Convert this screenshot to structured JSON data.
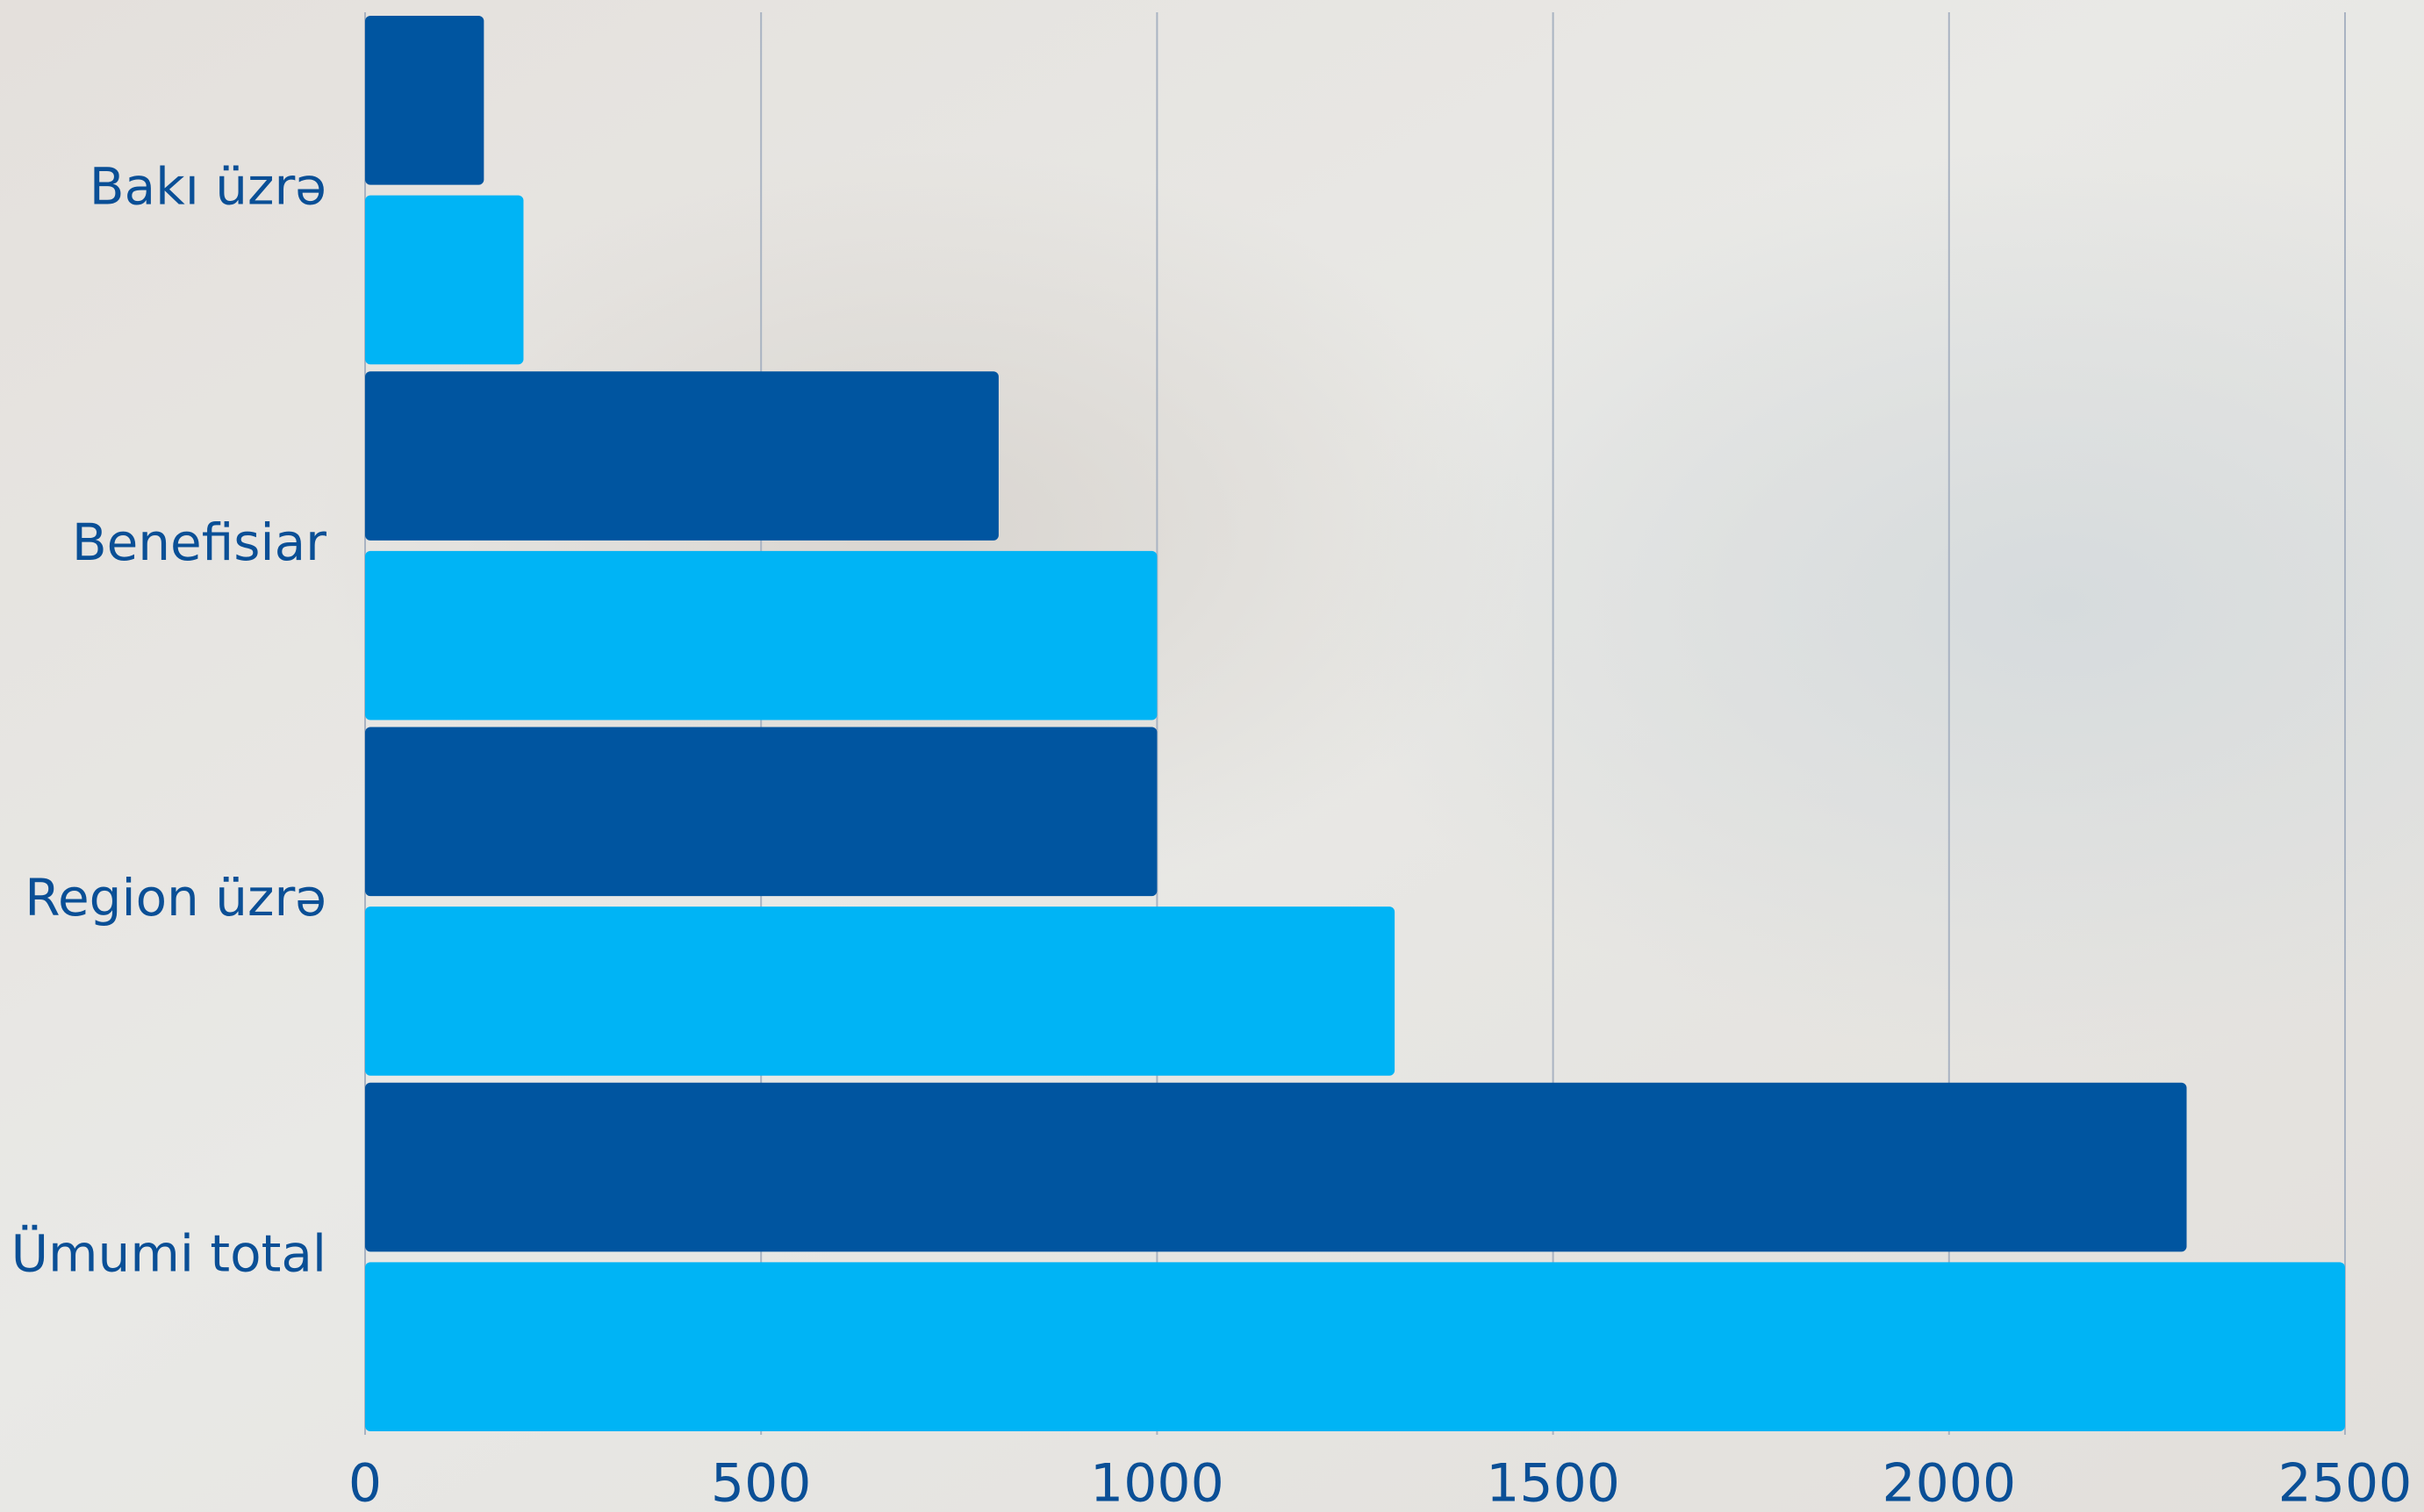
{
  "chart_data": {
    "type": "hbar",
    "categories": [
      "Bakı üzrə",
      "Benefisiar",
      "Region üzrə",
      "Ümumi total"
    ],
    "series": [
      {
        "color": "#0055a0",
        "values": [
          150,
          800,
          1000,
          2300
        ]
      },
      {
        "color": "#00b4f5",
        "values": [
          200,
          1000,
          1300,
          2500
        ]
      }
    ],
    "xlim": [
      0,
      2500
    ],
    "xticks": [
      0,
      500,
      1000,
      1500,
      2000,
      2500
    ],
    "grid": true
  }
}
